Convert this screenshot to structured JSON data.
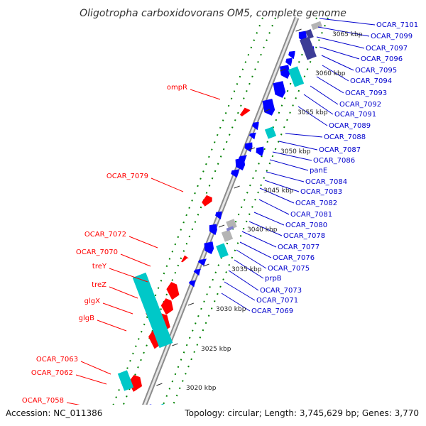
{
  "title": "Oligotropha carboxidovorans OM5, complete genome",
  "footer": {
    "accession": "Accession: NC_011386",
    "summary": "Topology: circular; Length: 3,745,629 bp; Genes: 3,770"
  },
  "colors": {
    "forward_gene": "#ff0000",
    "reverse_gene": "#0000ff",
    "rna": "#00c8c8",
    "other": "#b4b4b4",
    "other_dark": "#3c3c96",
    "tick": "#008000",
    "forward_label": "#ff0000",
    "reverse_label": "#0000cc"
  },
  "scale_labels": [
    "3065 kbp",
    "3060 kbp",
    "3055 kbp",
    "3050 kbp",
    "3045 kbp",
    "3040 kbp",
    "3035 kbp",
    "3030 kbp",
    "3025 kbp",
    "3020 kbp"
  ],
  "forward_labels": [
    "ompR",
    "OCAR_7079",
    "OCAR_7072",
    "OCAR_7070",
    "treY",
    "treZ",
    "glgX",
    "glgB",
    "OCAR_7063",
    "OCAR_7062",
    "OCAR_7058"
  ],
  "reverse_labels": [
    "OCAR_7101",
    "OCAR_7099",
    "OCAR_7097",
    "OCAR_7096",
    "OCAR_7095",
    "OCAR_7094",
    "OCAR_7093",
    "OCAR_7092",
    "OCAR_7091",
    "OCAR_7089",
    "OCAR_7088",
    "OCAR_7087",
    "OCAR_7086",
    "panE",
    "OCAR_7084",
    "OCAR_7083",
    "OCAR_7082",
    "OCAR_7081",
    "OCAR_7080",
    "OCAR_7078",
    "OCAR_7077",
    "OCAR_7076",
    "OCAR_7075",
    "prpB",
    "OCAR_7073",
    "OCAR_7071",
    "OCAR_7069"
  ]
}
